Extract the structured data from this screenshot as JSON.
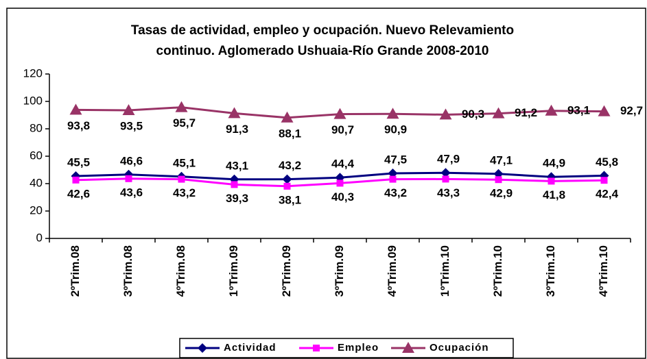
{
  "chart_data": {
    "type": "line",
    "title": "Tasas de actividad, empleo y ocupación. Nuevo Relevamiento continuo. Aglomerado Ushuaia-Río Grande 2008-2010",
    "title_lines": [
      "Tasas de actividad, empleo y ocupación. Nuevo Relevamiento",
      "continuo. Aglomerado Ushuaia-Río Grande 2008-2010"
    ],
    "categories": [
      "2ºTrim.08",
      "3ºTrim.08",
      "4ºTrim.08",
      "1ºTrim.09",
      "2ºTrim.09",
      "3ºTrim.09",
      "4ºTrim.09",
      "1ºTrim.10",
      "2ºTrim.10",
      "3ºTrim.10",
      "4ºTrim.10"
    ],
    "series": [
      {
        "name": "Actividad",
        "color": "#000080",
        "marker": "diamond",
        "values": [
          45.5,
          46.6,
          45.1,
          43.1,
          43.2,
          44.4,
          47.5,
          47.9,
          47.1,
          44.9,
          45.8
        ],
        "value_labels": [
          "45,5",
          "46,6",
          "45,1",
          "43,1",
          "43,2",
          "44,4",
          "47,5",
          "47,9",
          "47,1",
          "44,9",
          "45,8"
        ]
      },
      {
        "name": "Empleo",
        "color": "#ff00ff",
        "marker": "square",
        "values": [
          42.6,
          43.6,
          43.2,
          39.3,
          38.1,
          40.3,
          43.2,
          43.3,
          42.9,
          41.8,
          42.4
        ],
        "value_labels": [
          "42,6",
          "43,6",
          "43,2",
          "39,3",
          "38,1",
          "40,3",
          "43,2",
          "43,3",
          "42,9",
          "41,8",
          "42,4"
        ]
      },
      {
        "name": "Ocupación",
        "color": "#993366",
        "marker": "triangle",
        "values": [
          93.8,
          93.5,
          95.7,
          91.3,
          88.1,
          90.7,
          90.9,
          90.3,
          91.2,
          93.1,
          92.7
        ],
        "value_labels": [
          "93,8",
          "93,5",
          "95,7",
          "91,3",
          "88,1",
          "90,7",
          "90,9",
          "90,3",
          "91,2",
          "93,1",
          "92,7"
        ]
      }
    ],
    "ylim": [
      0,
      120
    ],
    "yticks": [
      0,
      20,
      40,
      60,
      80,
      100,
      120
    ],
    "grid": false,
    "legend": "bottom"
  }
}
